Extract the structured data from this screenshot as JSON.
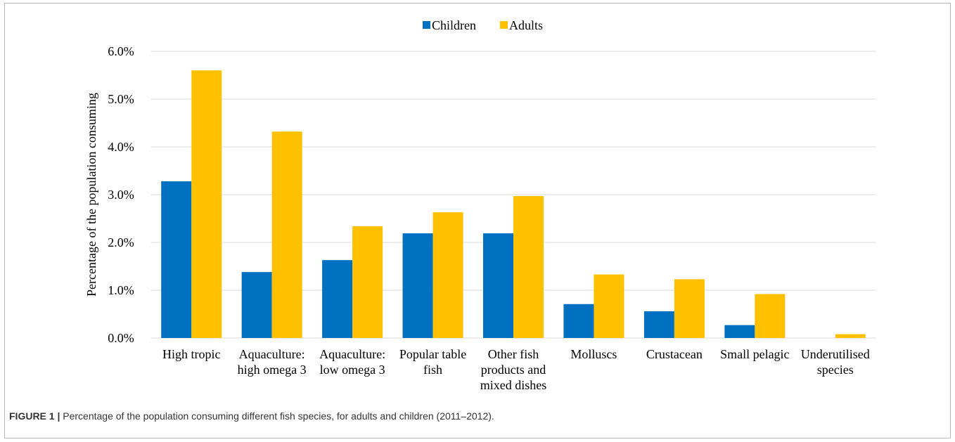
{
  "chart_data": {
    "type": "bar",
    "categories": [
      [
        "High tropic"
      ],
      [
        "Aquaculture:",
        "high omega 3"
      ],
      [
        "Aquaculture:",
        "low omega 3"
      ],
      [
        "Popular table",
        "fish"
      ],
      [
        "Other fish",
        "products and",
        "mixed dishes"
      ],
      [
        "Molluscs"
      ],
      [
        "Crustacean"
      ],
      [
        "Small pelagic"
      ],
      [
        "Underutilised",
        "species"
      ]
    ],
    "series": [
      {
        "name": "Children",
        "color": "#0070c0",
        "values": [
          3.28,
          1.38,
          1.63,
          2.19,
          2.19,
          0.71,
          0.56,
          0.27,
          0.0
        ]
      },
      {
        "name": "Adults",
        "color": "#ffc000",
        "values": [
          5.6,
          4.32,
          2.34,
          2.63,
          2.97,
          1.33,
          1.23,
          0.92,
          0.08
        ]
      }
    ],
    "ylabel": "Percentage of the population consuming",
    "xlabel": "",
    "ylim": [
      0,
      6
    ],
    "yticks": [
      "0.0%",
      "1.0%",
      "2.0%",
      "3.0%",
      "4.0%",
      "5.0%",
      "6.0%"
    ],
    "grid": true,
    "legend_position": "top-center"
  },
  "caption": {
    "label": "FIGURE 1 |",
    "text": " Percentage of the population consuming different fish species, for adults and children (2011–2012)."
  }
}
